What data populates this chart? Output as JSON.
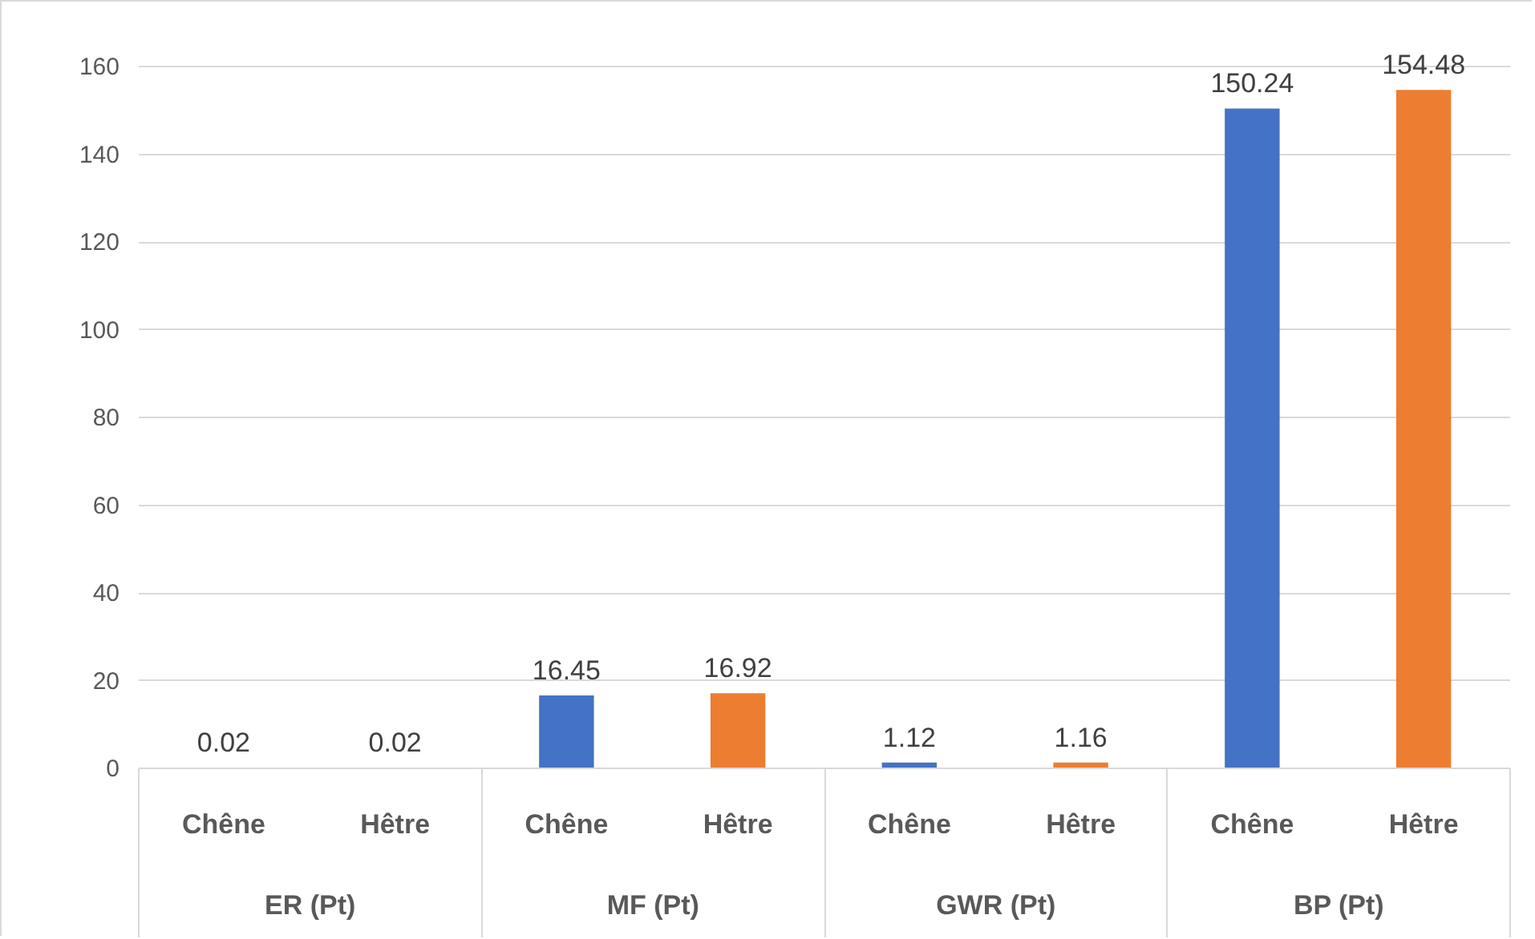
{
  "chart_data": {
    "type": "bar",
    "categories": [
      "ER (Pt)",
      "MF (Pt)",
      "GWR (Pt)",
      "BP (Pt)"
    ],
    "series": [
      {
        "name": "Chêne",
        "color": "#4472c4",
        "values": [
          0.02,
          16.45,
          1.12,
          150.24
        ]
      },
      {
        "name": "Hêtre",
        "color": "#ed7d31",
        "values": [
          0.02,
          16.92,
          1.16,
          154.48
        ]
      }
    ],
    "ylim": [
      0,
      160
    ],
    "yticks": [
      0,
      20,
      40,
      60,
      80,
      100,
      120,
      140,
      160
    ],
    "grid": "y",
    "data_labels": true
  }
}
